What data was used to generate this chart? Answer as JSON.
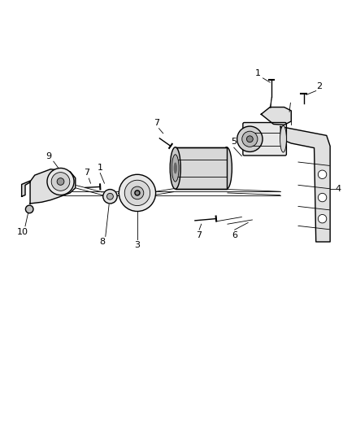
{
  "bg_color": "#ffffff",
  "line_color": "#000000",
  "label_color": "#000000",
  "fig_width": 4.38,
  "fig_height": 5.33,
  "dpi": 100
}
